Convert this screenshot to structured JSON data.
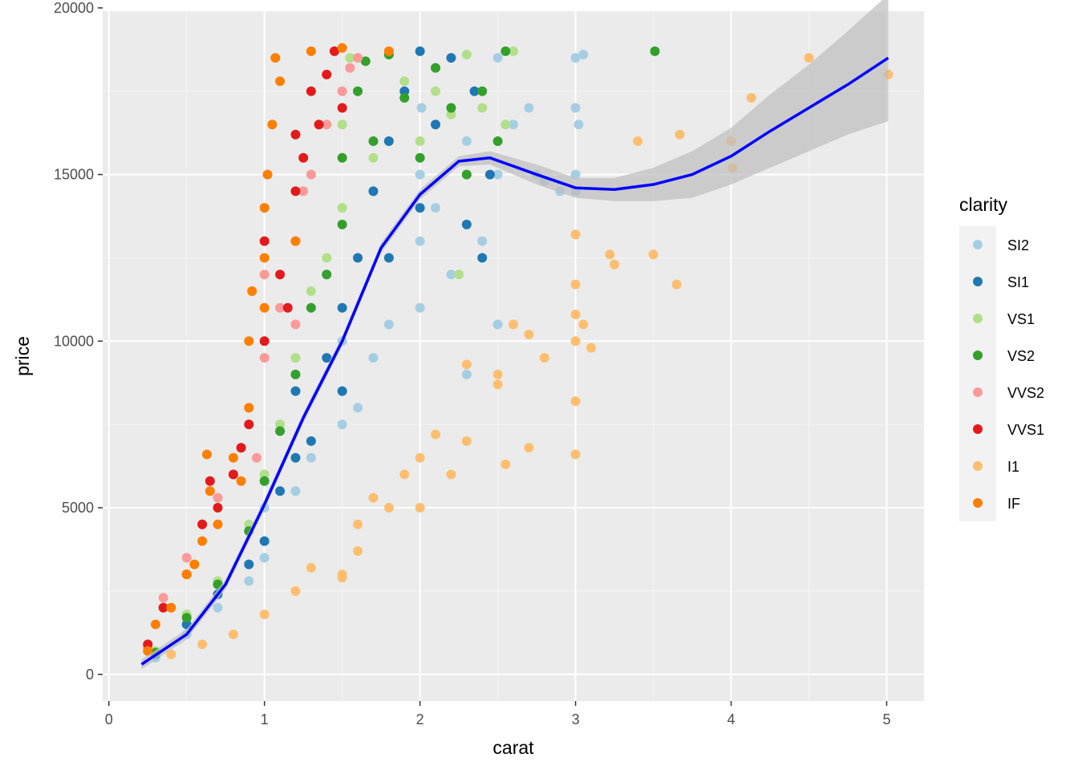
{
  "chart_data": {
    "type": "scatter",
    "title": "",
    "xlabel": "carat",
    "ylabel": "price",
    "xlim": [
      -0.04,
      5.24
    ],
    "ylim": [
      -800,
      19900
    ],
    "x_ticks": [
      0,
      1,
      2,
      3,
      4,
      5
    ],
    "x_tick_labels": [
      "0",
      "1",
      "2",
      "3",
      "4",
      "5"
    ],
    "y_ticks": [
      0,
      5000,
      10000,
      15000,
      20000
    ],
    "y_tick_labels": [
      "0",
      "5000",
      "10000",
      "15000",
      "20000"
    ],
    "grid": true,
    "legend": {
      "title": "clarity",
      "position": "right",
      "entries": [
        {
          "label": "SI2",
          "color": "#a6cee3"
        },
        {
          "label": "SI1",
          "color": "#1f78b4"
        },
        {
          "label": "VS1",
          "color": "#b2df8a"
        },
        {
          "label": "VS2",
          "color": "#33a02c"
        },
        {
          "label": "VVS2",
          "color": "#fb9a99"
        },
        {
          "label": "VVS1",
          "color": "#e31a1c"
        },
        {
          "label": "I1",
          "color": "#fdbf6f"
        },
        {
          "label": "IF",
          "color": "#ff7f00"
        }
      ]
    },
    "series": [
      {
        "name": "SI2",
        "color": "#a6cee3",
        "points": [
          [
            0.3,
            500
          ],
          [
            0.5,
            1200
          ],
          [
            0.7,
            2000
          ],
          [
            0.9,
            2800
          ],
          [
            1.0,
            3500
          ],
          [
            1.0,
            5000
          ],
          [
            1.2,
            5500
          ],
          [
            1.3,
            6500
          ],
          [
            1.5,
            7500
          ],
          [
            1.5,
            10000
          ],
          [
            1.6,
            8000
          ],
          [
            1.7,
            9500
          ],
          [
            1.8,
            10500
          ],
          [
            2.0,
            11000
          ],
          [
            2.0,
            13000
          ],
          [
            2.0,
            15000
          ],
          [
            2.01,
            17000
          ],
          [
            2.1,
            14000
          ],
          [
            2.2,
            12000
          ],
          [
            2.3,
            16000
          ],
          [
            2.4,
            13000
          ],
          [
            2.5,
            15000
          ],
          [
            2.5,
            18500
          ],
          [
            2.6,
            16500
          ],
          [
            2.7,
            17000
          ],
          [
            2.75,
            15000
          ],
          [
            2.8,
            14800
          ],
          [
            2.9,
            14500
          ],
          [
            3.0,
            18500
          ],
          [
            3.0,
            17000
          ],
          [
            3.0,
            15000
          ],
          [
            3.02,
            16500
          ],
          [
            3.05,
            18600
          ],
          [
            3.0,
            14500
          ],
          [
            2.5,
            10500
          ],
          [
            2.3,
            9000
          ]
        ]
      },
      {
        "name": "SI1",
        "color": "#1f78b4",
        "points": [
          [
            0.3,
            600
          ],
          [
            0.5,
            1500
          ],
          [
            0.7,
            2400
          ],
          [
            0.9,
            3300
          ],
          [
            1.0,
            4000
          ],
          [
            1.1,
            5500
          ],
          [
            1.2,
            6500
          ],
          [
            1.3,
            7000
          ],
          [
            1.5,
            8500
          ],
          [
            1.5,
            11000
          ],
          [
            1.6,
            12500
          ],
          [
            1.7,
            14500
          ],
          [
            1.8,
            16000
          ],
          [
            1.9,
            17500
          ],
          [
            2.0,
            18700
          ],
          [
            2.0,
            14000
          ],
          [
            2.1,
            16500
          ],
          [
            2.2,
            18500
          ],
          [
            2.3,
            13500
          ],
          [
            2.35,
            17500
          ],
          [
            2.4,
            12500
          ],
          [
            2.45,
            15000
          ],
          [
            1.4,
            9500
          ],
          [
            1.2,
            8500
          ],
          [
            1.8,
            12500
          ]
        ]
      },
      {
        "name": "VS1",
        "color": "#b2df8a",
        "points": [
          [
            0.3,
            700
          ],
          [
            0.5,
            1800
          ],
          [
            0.7,
            2800
          ],
          [
            0.9,
            4500
          ],
          [
            1.0,
            6000
          ],
          [
            1.1,
            7500
          ],
          [
            1.2,
            9500
          ],
          [
            1.3,
            11500
          ],
          [
            1.4,
            12500
          ],
          [
            1.5,
            14000
          ],
          [
            1.5,
            16500
          ],
          [
            1.55,
            18500
          ],
          [
            1.6,
            17500
          ],
          [
            1.7,
            15500
          ],
          [
            1.8,
            18600
          ],
          [
            1.9,
            17800
          ],
          [
            2.0,
            16000
          ],
          [
            2.1,
            17500
          ],
          [
            2.2,
            16800
          ],
          [
            2.3,
            18600
          ],
          [
            2.4,
            17000
          ],
          [
            2.55,
            16500
          ],
          [
            2.25,
            12000
          ],
          [
            2.6,
            18700
          ]
        ]
      },
      {
        "name": "VS2",
        "color": "#33a02c",
        "points": [
          [
            0.3,
            650
          ],
          [
            0.5,
            1700
          ],
          [
            0.7,
            2700
          ],
          [
            0.9,
            4300
          ],
          [
            1.0,
            5800
          ],
          [
            1.1,
            7300
          ],
          [
            1.2,
            9000
          ],
          [
            1.3,
            11000
          ],
          [
            1.4,
            12000
          ],
          [
            1.5,
            13500
          ],
          [
            1.5,
            15500
          ],
          [
            1.6,
            17500
          ],
          [
            1.65,
            18400
          ],
          [
            1.7,
            16000
          ],
          [
            1.8,
            18600
          ],
          [
            1.9,
            17300
          ],
          [
            2.0,
            15500
          ],
          [
            2.1,
            18200
          ],
          [
            2.2,
            17000
          ],
          [
            2.3,
            15000
          ],
          [
            2.4,
            17500
          ],
          [
            2.5,
            16000
          ],
          [
            3.51,
            18700
          ],
          [
            2.55,
            18700
          ]
        ]
      },
      {
        "name": "VVS2",
        "color": "#fb9a99",
        "points": [
          [
            0.25,
            800
          ],
          [
            0.35,
            2300
          ],
          [
            0.5,
            3500
          ],
          [
            0.6,
            4500
          ],
          [
            0.7,
            5300
          ],
          [
            0.8,
            6000
          ],
          [
            0.9,
            8000
          ],
          [
            1.0,
            9500
          ],
          [
            1.0,
            12000
          ],
          [
            1.1,
            11000
          ],
          [
            1.2,
            13000
          ],
          [
            1.25,
            14500
          ],
          [
            1.3,
            15000
          ],
          [
            1.4,
            16500
          ],
          [
            1.5,
            17500
          ],
          [
            1.55,
            18200
          ],
          [
            1.6,
            18500
          ],
          [
            1.2,
            10500
          ],
          [
            0.95,
            6500
          ]
        ]
      },
      {
        "name": "VVS1",
        "color": "#e31a1c",
        "points": [
          [
            0.25,
            900
          ],
          [
            0.35,
            2000
          ],
          [
            0.5,
            3000
          ],
          [
            0.6,
            4500
          ],
          [
            0.65,
            5800
          ],
          [
            0.7,
            5000
          ],
          [
            0.8,
            6000
          ],
          [
            0.9,
            7500
          ],
          [
            1.0,
            10000
          ],
          [
            1.0,
            13000
          ],
          [
            1.1,
            12000
          ],
          [
            1.2,
            14500
          ],
          [
            1.2,
            16200
          ],
          [
            1.25,
            15500
          ],
          [
            1.3,
            17500
          ],
          [
            1.35,
            16500
          ],
          [
            1.4,
            18000
          ],
          [
            1.45,
            18700
          ],
          [
            1.5,
            17000
          ],
          [
            1.15,
            11000
          ],
          [
            0.85,
            6800
          ]
        ]
      },
      {
        "name": "I1",
        "color": "#fdbf6f",
        "points": [
          [
            0.4,
            600
          ],
          [
            0.6,
            900
          ],
          [
            0.8,
            1200
          ],
          [
            1.0,
            1800
          ],
          [
            1.2,
            2500
          ],
          [
            1.3,
            3200
          ],
          [
            1.5,
            3000
          ],
          [
            1.6,
            4500
          ],
          [
            1.7,
            5300
          ],
          [
            1.8,
            5000
          ],
          [
            1.9,
            6000
          ],
          [
            2.0,
            5000
          ],
          [
            2.0,
            6500
          ],
          [
            2.1,
            7200
          ],
          [
            2.2,
            6000
          ],
          [
            2.3,
            7000
          ],
          [
            2.5,
            9000
          ],
          [
            2.5,
            8700
          ],
          [
            2.55,
            6300
          ],
          [
            2.6,
            10500
          ],
          [
            2.7,
            10200
          ],
          [
            2.8,
            9500
          ],
          [
            3.0,
            13200
          ],
          [
            3.0,
            11700
          ],
          [
            3.0,
            10800
          ],
          [
            3.0,
            10000
          ],
          [
            3.0,
            8200
          ],
          [
            3.0,
            6600
          ],
          [
            3.05,
            10500
          ],
          [
            3.1,
            9800
          ],
          [
            3.22,
            12600
          ],
          [
            3.25,
            12300
          ],
          [
            3.4,
            16000
          ],
          [
            3.5,
            12600
          ],
          [
            3.65,
            11700
          ],
          [
            3.67,
            16200
          ],
          [
            4.0,
            16000
          ],
          [
            4.01,
            15200
          ],
          [
            4.13,
            17300
          ],
          [
            4.5,
            18500
          ],
          [
            5.01,
            18000
          ],
          [
            2.3,
            9300
          ],
          [
            2.7,
            6800
          ],
          [
            1.6,
            3700
          ],
          [
            1.5,
            2900
          ]
        ]
      },
      {
        "name": "IF",
        "color": "#ff7f00",
        "points": [
          [
            0.25,
            700
          ],
          [
            0.3,
            1500
          ],
          [
            0.4,
            2000
          ],
          [
            0.5,
            3000
          ],
          [
            0.55,
            3300
          ],
          [
            0.6,
            4000
          ],
          [
            0.63,
            6600
          ],
          [
            0.65,
            5500
          ],
          [
            0.7,
            4500
          ],
          [
            0.8,
            6500
          ],
          [
            0.85,
            5800
          ],
          [
            0.9,
            8000
          ],
          [
            0.9,
            10000
          ],
          [
            0.92,
            11500
          ],
          [
            1.0,
            11000
          ],
          [
            1.0,
            12500
          ],
          [
            1.0,
            14000
          ],
          [
            1.02,
            15000
          ],
          [
            1.05,
            16500
          ],
          [
            1.07,
            18500
          ],
          [
            1.1,
            17800
          ],
          [
            1.2,
            13000
          ],
          [
            1.3,
            18700
          ],
          [
            1.5,
            18800
          ],
          [
            1.8,
            18700
          ]
        ]
      }
    ],
    "smooth": {
      "color": "#0000ff",
      "ribbon_color": "#bdbdbd",
      "points": [
        {
          "x": 0.21,
          "y": 300,
          "lo": 150,
          "hi": 450
        },
        {
          "x": 0.5,
          "y": 1200,
          "lo": 1050,
          "hi": 1350
        },
        {
          "x": 0.75,
          "y": 2700,
          "lo": 2550,
          "hi": 2850
        },
        {
          "x": 1.0,
          "y": 5100,
          "lo": 4950,
          "hi": 5250
        },
        {
          "x": 1.25,
          "y": 7700,
          "lo": 7550,
          "hi": 7850
        },
        {
          "x": 1.5,
          "y": 10000,
          "lo": 9850,
          "hi": 10150
        },
        {
          "x": 1.75,
          "y": 12800,
          "lo": 12650,
          "hi": 12950
        },
        {
          "x": 2.0,
          "y": 14400,
          "lo": 14250,
          "hi": 14550
        },
        {
          "x": 2.25,
          "y": 15400,
          "lo": 15250,
          "hi": 15550
        },
        {
          "x": 2.45,
          "y": 15500,
          "lo": 15300,
          "hi": 15700
        },
        {
          "x": 2.75,
          "y": 15000,
          "lo": 14700,
          "hi": 15300
        },
        {
          "x": 3.0,
          "y": 14600,
          "lo": 14300,
          "hi": 14900
        },
        {
          "x": 3.25,
          "y": 14550,
          "lo": 14200,
          "hi": 14900
        },
        {
          "x": 3.5,
          "y": 14700,
          "lo": 14200,
          "hi": 15200
        },
        {
          "x": 3.75,
          "y": 15000,
          "lo": 14300,
          "hi": 15700
        },
        {
          "x": 4.0,
          "y": 15550,
          "lo": 14700,
          "hi": 16400
        },
        {
          "x": 4.25,
          "y": 16300,
          "lo": 15200,
          "hi": 17400
        },
        {
          "x": 4.5,
          "y": 17000,
          "lo": 15700,
          "hi": 18300
        },
        {
          "x": 4.75,
          "y": 17700,
          "lo": 16200,
          "hi": 19300
        },
        {
          "x": 5.01,
          "y": 18500,
          "lo": 16600,
          "hi": 20400
        }
      ]
    }
  }
}
